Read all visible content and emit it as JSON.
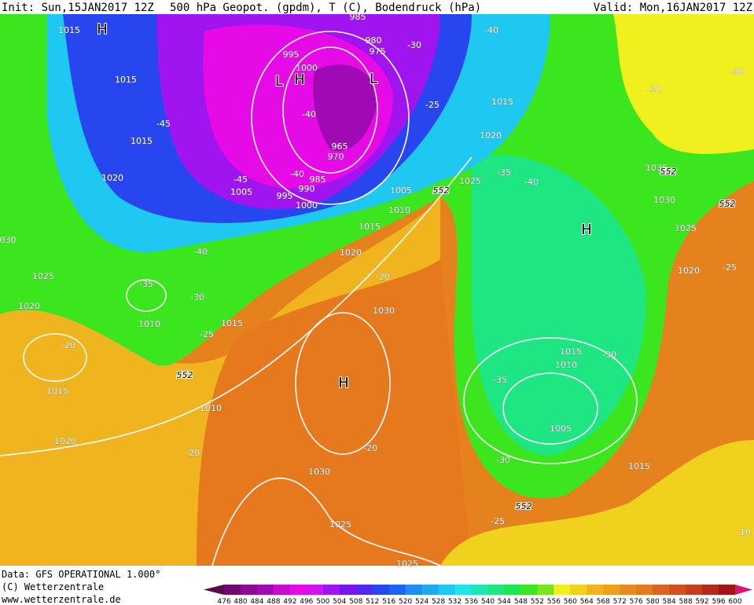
{
  "header": {
    "init": "Init: Sun,15JAN2017 12Z",
    "title": "500 hPa Geopot. (gpdm), T (C), Bodendruck (hPa)",
    "valid": "Valid: Mon,16JAN2017 12Z"
  },
  "footer": {
    "data": "Data: GFS OPERATIONAL 1.000°",
    "copyright": "(C) Wetterzentrale",
    "url": "www.wetterzentrale.de"
  },
  "colorbar": {
    "labels": [
      476,
      480,
      484,
      488,
      492,
      496,
      500,
      504,
      508,
      512,
      516,
      520,
      524,
      528,
      532,
      536,
      540,
      544,
      548,
      552,
      556,
      560,
      564,
      568,
      572,
      576,
      580,
      584,
      588,
      592,
      596,
      600
    ],
    "colors": [
      "#5a0a46",
      "#6e0a6e",
      "#8c0a96",
      "#a00ab4",
      "#c80ad2",
      "#e60ae6",
      "#d214f0",
      "#a014f0",
      "#7814f0",
      "#5028f0",
      "#2846f0",
      "#1e64f0",
      "#1e8cf0",
      "#1eaaf0",
      "#1ec8f0",
      "#1ee6e6",
      "#1ee6b4",
      "#1ee682",
      "#1ee650",
      "#3ce61e",
      "#78e61e",
      "#f0f01e",
      "#f0d21e",
      "#f0b41e",
      "#f0a01e",
      "#e68c1e",
      "#e6781e",
      "#dc641e",
      "#d2501e",
      "#c83c1e",
      "#b4281e",
      "#a01414",
      "#dc1478"
    ]
  },
  "map": {
    "labels": [
      "H",
      "1015",
      "1015",
      "1015",
      "1020",
      "030",
      "1025",
      "1020",
      "-35",
      "-30",
      "1010",
      "-40",
      "-45",
      "1015",
      "-25",
      "-20",
      "552",
      "1015",
      "1010",
      "1020",
      "-20",
      "995",
      "1000",
      "L",
      "H",
      "980",
      "975",
      "985",
      "L",
      "-40",
      "-30",
      "-25",
      "965",
      "970",
      "-45",
      "-40",
      "1005",
      "985",
      "990",
      "995",
      "1000",
      "1005",
      "552",
      "1010",
      "1015",
      "1020",
      "-20",
      "1030",
      "H",
      "-20",
      "1030",
      "1025",
      "1025",
      "-40",
      "1015",
      "1020",
      "-35",
      "-40",
      "1025",
      "H",
      "1015",
      "1010",
      "-30",
      "-35",
      "1005",
      "-30",
      "1015",
      "552",
      "-25",
      "-30",
      "-30",
      "1035",
      "552",
      "1030",
      "552",
      "1025",
      "1020",
      "-25",
      "10"
    ]
  }
}
